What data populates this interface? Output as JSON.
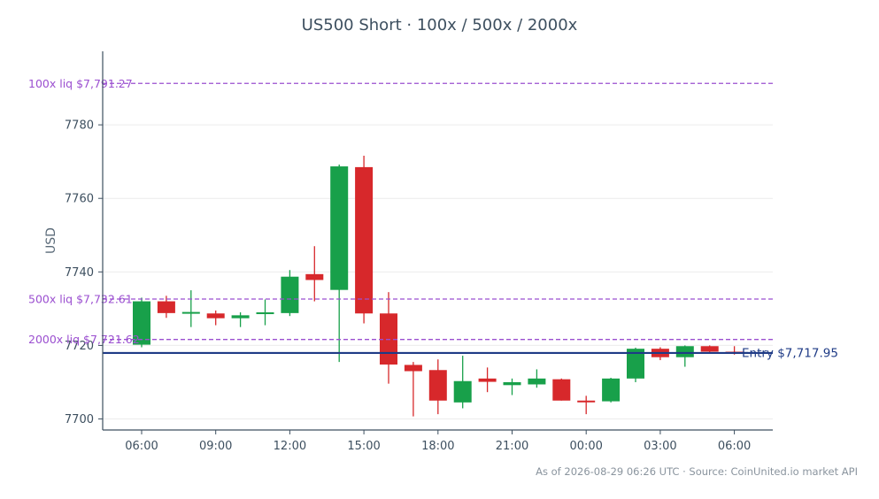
{
  "chart_data": {
    "type": "candlestick",
    "title": "US500 Short · 100x / 500x / 2000x",
    "ylabel": "USD",
    "xlabel": "",
    "ylim": [
      7697,
      7800
    ],
    "y_ticks": [
      7700,
      7720,
      7740,
      7760,
      7780
    ],
    "x_ticks": [
      {
        "label": "06:00",
        "index": 0
      },
      {
        "label": "09:00",
        "index": 3
      },
      {
        "label": "12:00",
        "index": 6
      },
      {
        "label": "15:00",
        "index": 9
      },
      {
        "label": "18:00",
        "index": 12
      },
      {
        "label": "21:00",
        "index": 15
      },
      {
        "label": "00:00",
        "index": 18
      },
      {
        "label": "03:00",
        "index": 21
      },
      {
        "label": "06:00",
        "index": 24
      }
    ],
    "grid": true,
    "colors": {
      "up": "#18a04a",
      "down": "#d7282b",
      "liq": "#9b4fd0",
      "entry": "#1f3b86",
      "axis": "#3d4f5f",
      "grid": "#ececec"
    },
    "candles": [
      {
        "open": 7720.2,
        "high": 7733.0,
        "low": 7719.5,
        "close": 7732.0
      },
      {
        "open": 7732.0,
        "high": 7733.5,
        "low": 7727.5,
        "close": 7728.8
      },
      {
        "open": 7728.9,
        "high": 7735.0,
        "low": 7725.0,
        "close": 7729.1
      },
      {
        "open": 7728.7,
        "high": 7729.5,
        "low": 7725.5,
        "close": 7727.4
      },
      {
        "open": 7727.4,
        "high": 7729.0,
        "low": 7725.0,
        "close": 7728.2
      },
      {
        "open": 7728.8,
        "high": 7732.5,
        "low": 7725.5,
        "close": 7729.0
      },
      {
        "open": 7728.8,
        "high": 7740.5,
        "low": 7728.0,
        "close": 7738.7
      },
      {
        "open": 7739.4,
        "high": 7747.0,
        "low": 7732.0,
        "close": 7737.8
      },
      {
        "open": 7735.1,
        "high": 7769.2,
        "low": 7715.5,
        "close": 7768.7
      },
      {
        "open": 7768.5,
        "high": 7771.6,
        "low": 7726.0,
        "close": 7728.7
      },
      {
        "open": 7728.7,
        "high": 7734.5,
        "low": 7709.6,
        "close": 7714.8
      },
      {
        "open": 7714.7,
        "high": 7715.5,
        "low": 7700.7,
        "close": 7713.0
      },
      {
        "open": 7713.3,
        "high": 7716.2,
        "low": 7701.3,
        "close": 7705.0
      },
      {
        "open": 7704.5,
        "high": 7717.2,
        "low": 7702.9,
        "close": 7710.3
      },
      {
        "open": 7711.0,
        "high": 7714.0,
        "low": 7707.3,
        "close": 7710.1
      },
      {
        "open": 7709.2,
        "high": 7711.0,
        "low": 7706.5,
        "close": 7710.0
      },
      {
        "open": 7709.4,
        "high": 7713.5,
        "low": 7708.5,
        "close": 7711.0
      },
      {
        "open": 7710.8,
        "high": 7711.0,
        "low": 7705.0,
        "close": 7705.0
      },
      {
        "open": 7705.0,
        "high": 7706.3,
        "low": 7701.3,
        "close": 7704.8
      },
      {
        "open": 7704.8,
        "high": 7711.2,
        "low": 7704.5,
        "close": 7711.0
      },
      {
        "open": 7711.0,
        "high": 7719.4,
        "low": 7710.0,
        "close": 7719.1
      },
      {
        "open": 7719.1,
        "high": 7719.5,
        "low": 7716.0,
        "close": 7716.8
      },
      {
        "open": 7716.8,
        "high": 7720.0,
        "low": 7714.2,
        "close": 7719.8
      },
      {
        "open": 7719.8,
        "high": 7720.0,
        "low": 7718.0,
        "close": 7718.3
      },
      {
        "open": 7718.3,
        "high": 7719.8,
        "low": 7717.5,
        "close": 7717.9
      }
    ],
    "lines": [
      {
        "label": "100x liq $7,791.27",
        "value": 7791.27,
        "style": "dashed",
        "kind": "liq"
      },
      {
        "label": "500x liq $7,732.61",
        "value": 7732.61,
        "style": "dashed",
        "kind": "liq"
      },
      {
        "label": "2000x liq $7,721.62",
        "value": 7721.62,
        "style": "dashed",
        "kind": "liq"
      },
      {
        "label": "Entry $7,717.95",
        "value": 7717.95,
        "style": "solid",
        "kind": "entry"
      }
    ]
  },
  "footer": "As of 2026-08-29 06:26 UTC · Source: CoinUnited.io market API"
}
